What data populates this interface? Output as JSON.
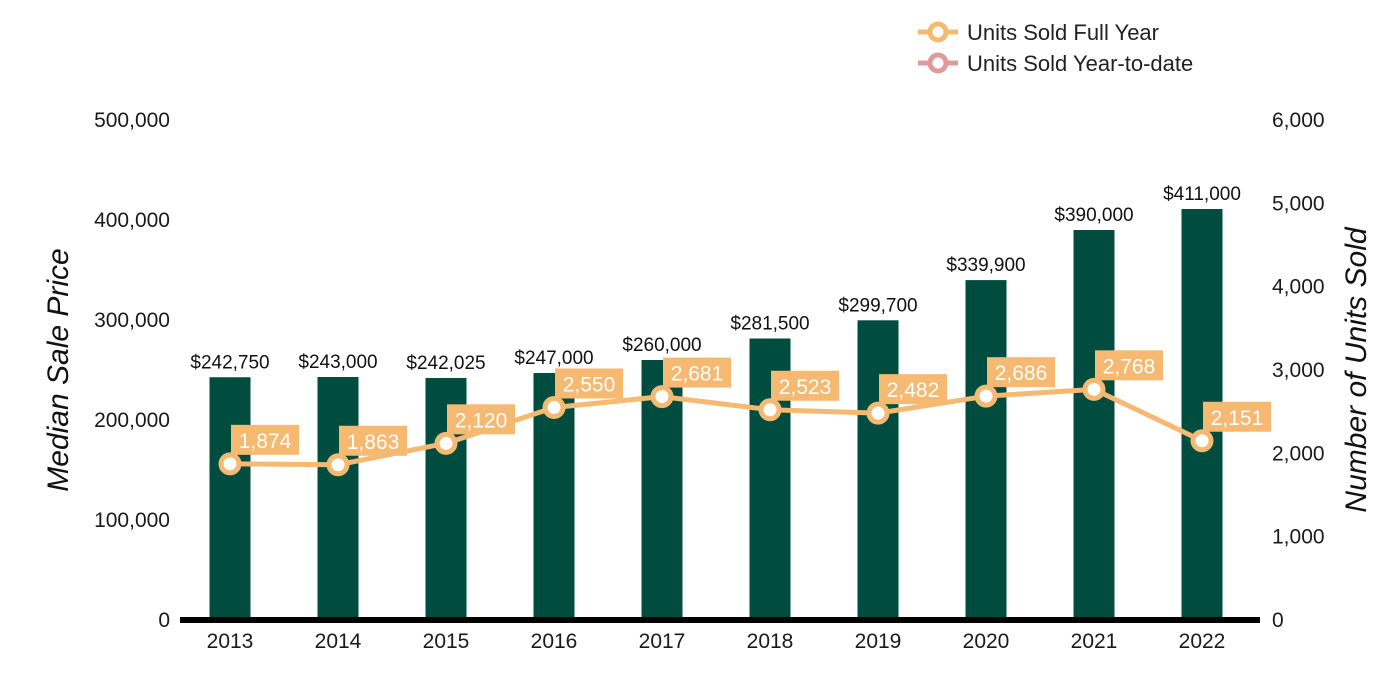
{
  "chart_data": {
    "type": "bar+line",
    "categories": [
      "2013",
      "2014",
      "2015",
      "2016",
      "2017",
      "2018",
      "2019",
      "2020",
      "2021",
      "2022"
    ],
    "bar_series": {
      "name": "Median Sale Price",
      "values": [
        242750,
        243000,
        242025,
        247000,
        260000,
        281500,
        299700,
        339900,
        390000,
        411000
      ],
      "labels": [
        "$242,750",
        "$243,000",
        "$242,025",
        "$247,000",
        "$260,000",
        "$281,500",
        "$299,700",
        "$339,900",
        "$390,000",
        "$411,000"
      ],
      "color": "#004d40"
    },
    "line_series": [
      {
        "name": "Units Sold Full Year",
        "values": [
          1874,
          1863,
          2120,
          2550,
          2681,
          2523,
          2482,
          2686,
          2768,
          2151
        ],
        "labels": [
          "1,874",
          "1,863",
          "2,120",
          "2,550",
          "2,681",
          "2,523",
          "2,482",
          "2,686",
          "2,768",
          "2,151"
        ],
        "color": "#f5b971"
      },
      {
        "name": "Units Sold Year-to-date",
        "values": [],
        "labels": [],
        "color": "#e19a9a"
      }
    ],
    "y_left": {
      "label": "Median Sale Price",
      "range": [
        0,
        500000
      ],
      "ticks": [
        0,
        100000,
        200000,
        300000,
        400000,
        500000
      ],
      "tick_labels": [
        "0",
        "100,000",
        "200,000",
        "300,000",
        "400,000",
        "500,000"
      ]
    },
    "y_right": {
      "label": "Number of Units Sold",
      "range": [
        0,
        6000
      ],
      "ticks": [
        0,
        1000,
        2000,
        3000,
        4000,
        5000,
        6000
      ],
      "tick_labels": [
        "0",
        "1,000",
        "2,000",
        "3,000",
        "4,000",
        "5,000",
        "6,000"
      ]
    },
    "legend_position": "top-right",
    "grid": false
  }
}
